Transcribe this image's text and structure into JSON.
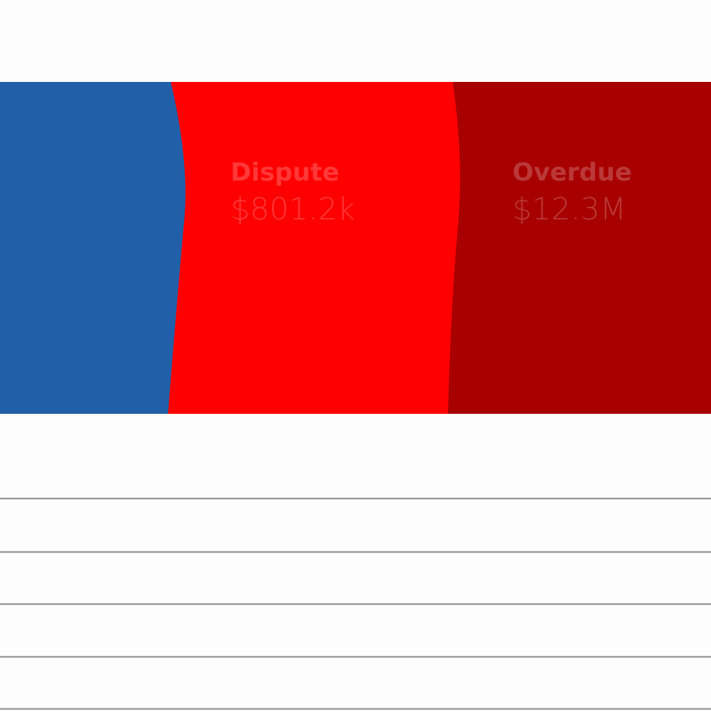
{
  "segments": [
    {
      "label": "Dispute",
      "amount": "$801.2k"
    },
    {
      "label": "Overdue",
      "amount": "$12.3M"
    }
  ]
}
